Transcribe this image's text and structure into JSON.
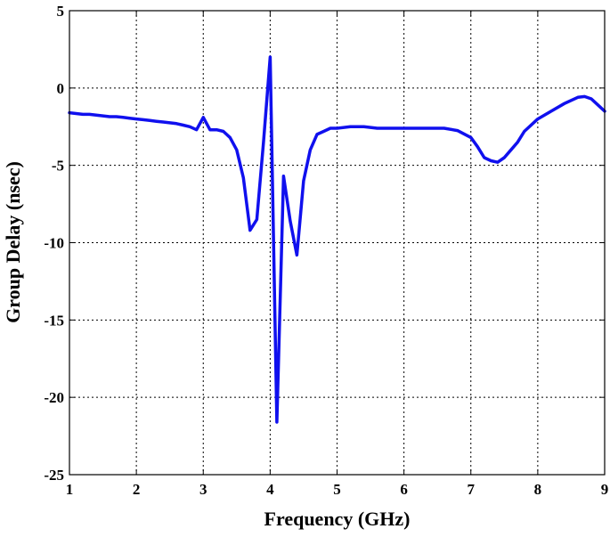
{
  "chart_data": {
    "type": "line",
    "title": "",
    "xlabel": "Frequency (GHz)",
    "ylabel": "Group Delay (nsec)",
    "xlim": [
      1,
      9
    ],
    "ylim": [
      -25,
      5
    ],
    "xticks": [
      1,
      2,
      3,
      4,
      5,
      6,
      7,
      8,
      9
    ],
    "yticks": [
      5,
      0,
      -5,
      -10,
      -15,
      -20,
      -25
    ],
    "x_tick_labels": [
      "1",
      "2",
      "3",
      "4",
      "5",
      "6",
      "7",
      "8",
      "9"
    ],
    "y_tick_labels": [
      "5",
      "0",
      "-5",
      "-10",
      "-15",
      "-20",
      "-25"
    ],
    "grid": true,
    "series_color": "#1010ee",
    "series": [
      {
        "x": [
          1.0,
          1.1,
          1.2,
          1.3,
          1.4,
          1.5,
          1.6,
          1.7,
          1.8,
          1.9,
          2.0,
          2.1,
          2.2,
          2.3,
          2.4,
          2.5,
          2.6,
          2.7,
          2.8,
          2.9,
          3.0,
          3.1,
          3.2,
          3.3,
          3.4,
          3.5,
          3.6,
          3.7,
          3.8,
          3.9,
          4.0,
          4.1,
          4.2,
          4.3,
          4.4,
          4.5,
          4.6,
          4.7,
          4.8,
          4.9,
          5.0,
          5.2,
          5.4,
          5.6,
          5.8,
          6.0,
          6.2,
          6.4,
          6.6,
          6.8,
          7.0,
          7.1,
          7.2,
          7.3,
          7.4,
          7.5,
          7.6,
          7.7,
          7.8,
          8.0,
          8.2,
          8.4,
          8.6,
          8.7,
          8.8,
          8.9,
          9.0
        ],
        "values": [
          -1.6,
          -1.65,
          -1.7,
          -1.7,
          -1.75,
          -1.8,
          -1.85,
          -1.85,
          -1.9,
          -1.95,
          -2.0,
          -2.05,
          -2.1,
          -2.15,
          -2.2,
          -2.25,
          -2.3,
          -2.4,
          -2.5,
          -2.7,
          -1.9,
          -2.7,
          -2.7,
          -2.8,
          -3.2,
          -4.0,
          -5.8,
          -9.2,
          -8.5,
          -3.5,
          2.0,
          -21.6,
          -5.7,
          -8.6,
          -10.8,
          -6.0,
          -4.0,
          -3.0,
          -2.8,
          -2.6,
          -2.6,
          -2.5,
          -2.5,
          -2.6,
          -2.6,
          -2.6,
          -2.6,
          -2.6,
          -2.6,
          -2.75,
          -3.2,
          -3.8,
          -4.5,
          -4.7,
          -4.8,
          -4.5,
          -4.0,
          -3.5,
          -2.8,
          -2.0,
          -1.5,
          -1.0,
          -0.6,
          -0.55,
          -0.7,
          -1.1,
          -1.5
        ]
      }
    ]
  }
}
